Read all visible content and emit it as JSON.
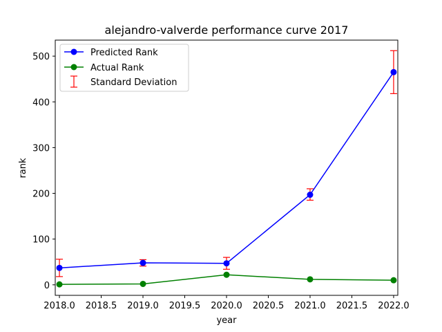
{
  "chart_data": {
    "type": "line",
    "title": "alejandro-valverde performance curve 2017",
    "xlabel": "year",
    "ylabel": "rank",
    "xlim": [
      2017.95,
      2022.05
    ],
    "ylim": [
      -23,
      535
    ],
    "xticks": [
      2018.0,
      2018.5,
      2019.0,
      2019.5,
      2020.0,
      2020.5,
      2021.0,
      2021.5,
      2022.0
    ],
    "xtick_labels": [
      "2018.0",
      "2018.5",
      "2019.0",
      "2019.5",
      "2020.0",
      "2020.5",
      "2021.0",
      "2021.5",
      "2022.0"
    ],
    "yticks": [
      0,
      100,
      200,
      300,
      400,
      500
    ],
    "ytick_labels": [
      "0",
      "100",
      "200",
      "300",
      "400",
      "500"
    ],
    "grid": false,
    "legend_position": "top-left",
    "x": [
      2018,
      2019,
      2020,
      2021,
      2022
    ],
    "series": [
      {
        "name": "Predicted Rank",
        "values": [
          37,
          48,
          47,
          197,
          465
        ],
        "color": "#0000ff",
        "marker": "circle"
      },
      {
        "name": "Actual Rank",
        "values": [
          1,
          2,
          22,
          12,
          10
        ],
        "color": "#008000",
        "marker": "circle"
      }
    ],
    "error_bars": {
      "name": "Standard Deviation",
      "color": "#ff0000",
      "x": [
        2018,
        2019,
        2020,
        2021,
        2022
      ],
      "center": [
        37,
        48,
        47,
        197,
        465
      ],
      "lower": [
        18,
        41,
        34,
        185,
        418
      ],
      "upper": [
        56,
        55,
        60,
        210,
        512
      ]
    }
  }
}
